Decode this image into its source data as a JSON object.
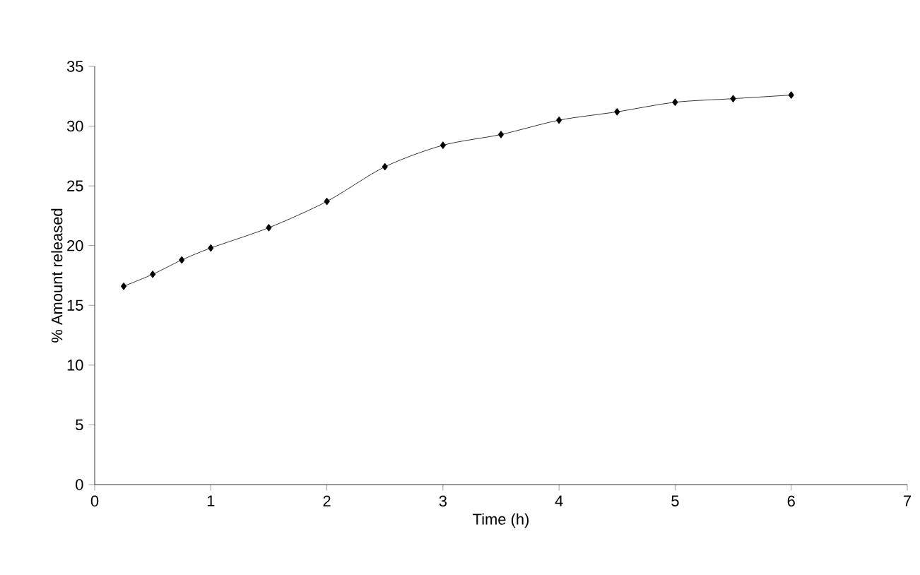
{
  "chart_data": {
    "type": "line",
    "xlabel": "Time (h)",
    "ylabel": "% Amount released",
    "x": [
      0.25,
      0.5,
      0.75,
      1,
      1.5,
      2,
      2.5,
      3,
      3.5,
      4,
      4.5,
      5,
      5.5,
      6
    ],
    "series": [
      {
        "color": "#000000",
        "values": [
          16.6,
          17.6,
          18.8,
          19.8,
          21.5,
          23.7,
          26.6,
          28.4,
          29.3,
          30.5,
          31.2,
          32.0,
          32.3,
          32.6
        ]
      }
    ],
    "xlim": [
      0,
      7
    ],
    "xticks": [
      0,
      1,
      2,
      3,
      4,
      5,
      6,
      7
    ],
    "ylim": [
      0,
      35
    ],
    "yticks": [
      0,
      5,
      10,
      15,
      20,
      25,
      30,
      35
    ],
    "marker": "diamond",
    "line_style": "solid"
  }
}
